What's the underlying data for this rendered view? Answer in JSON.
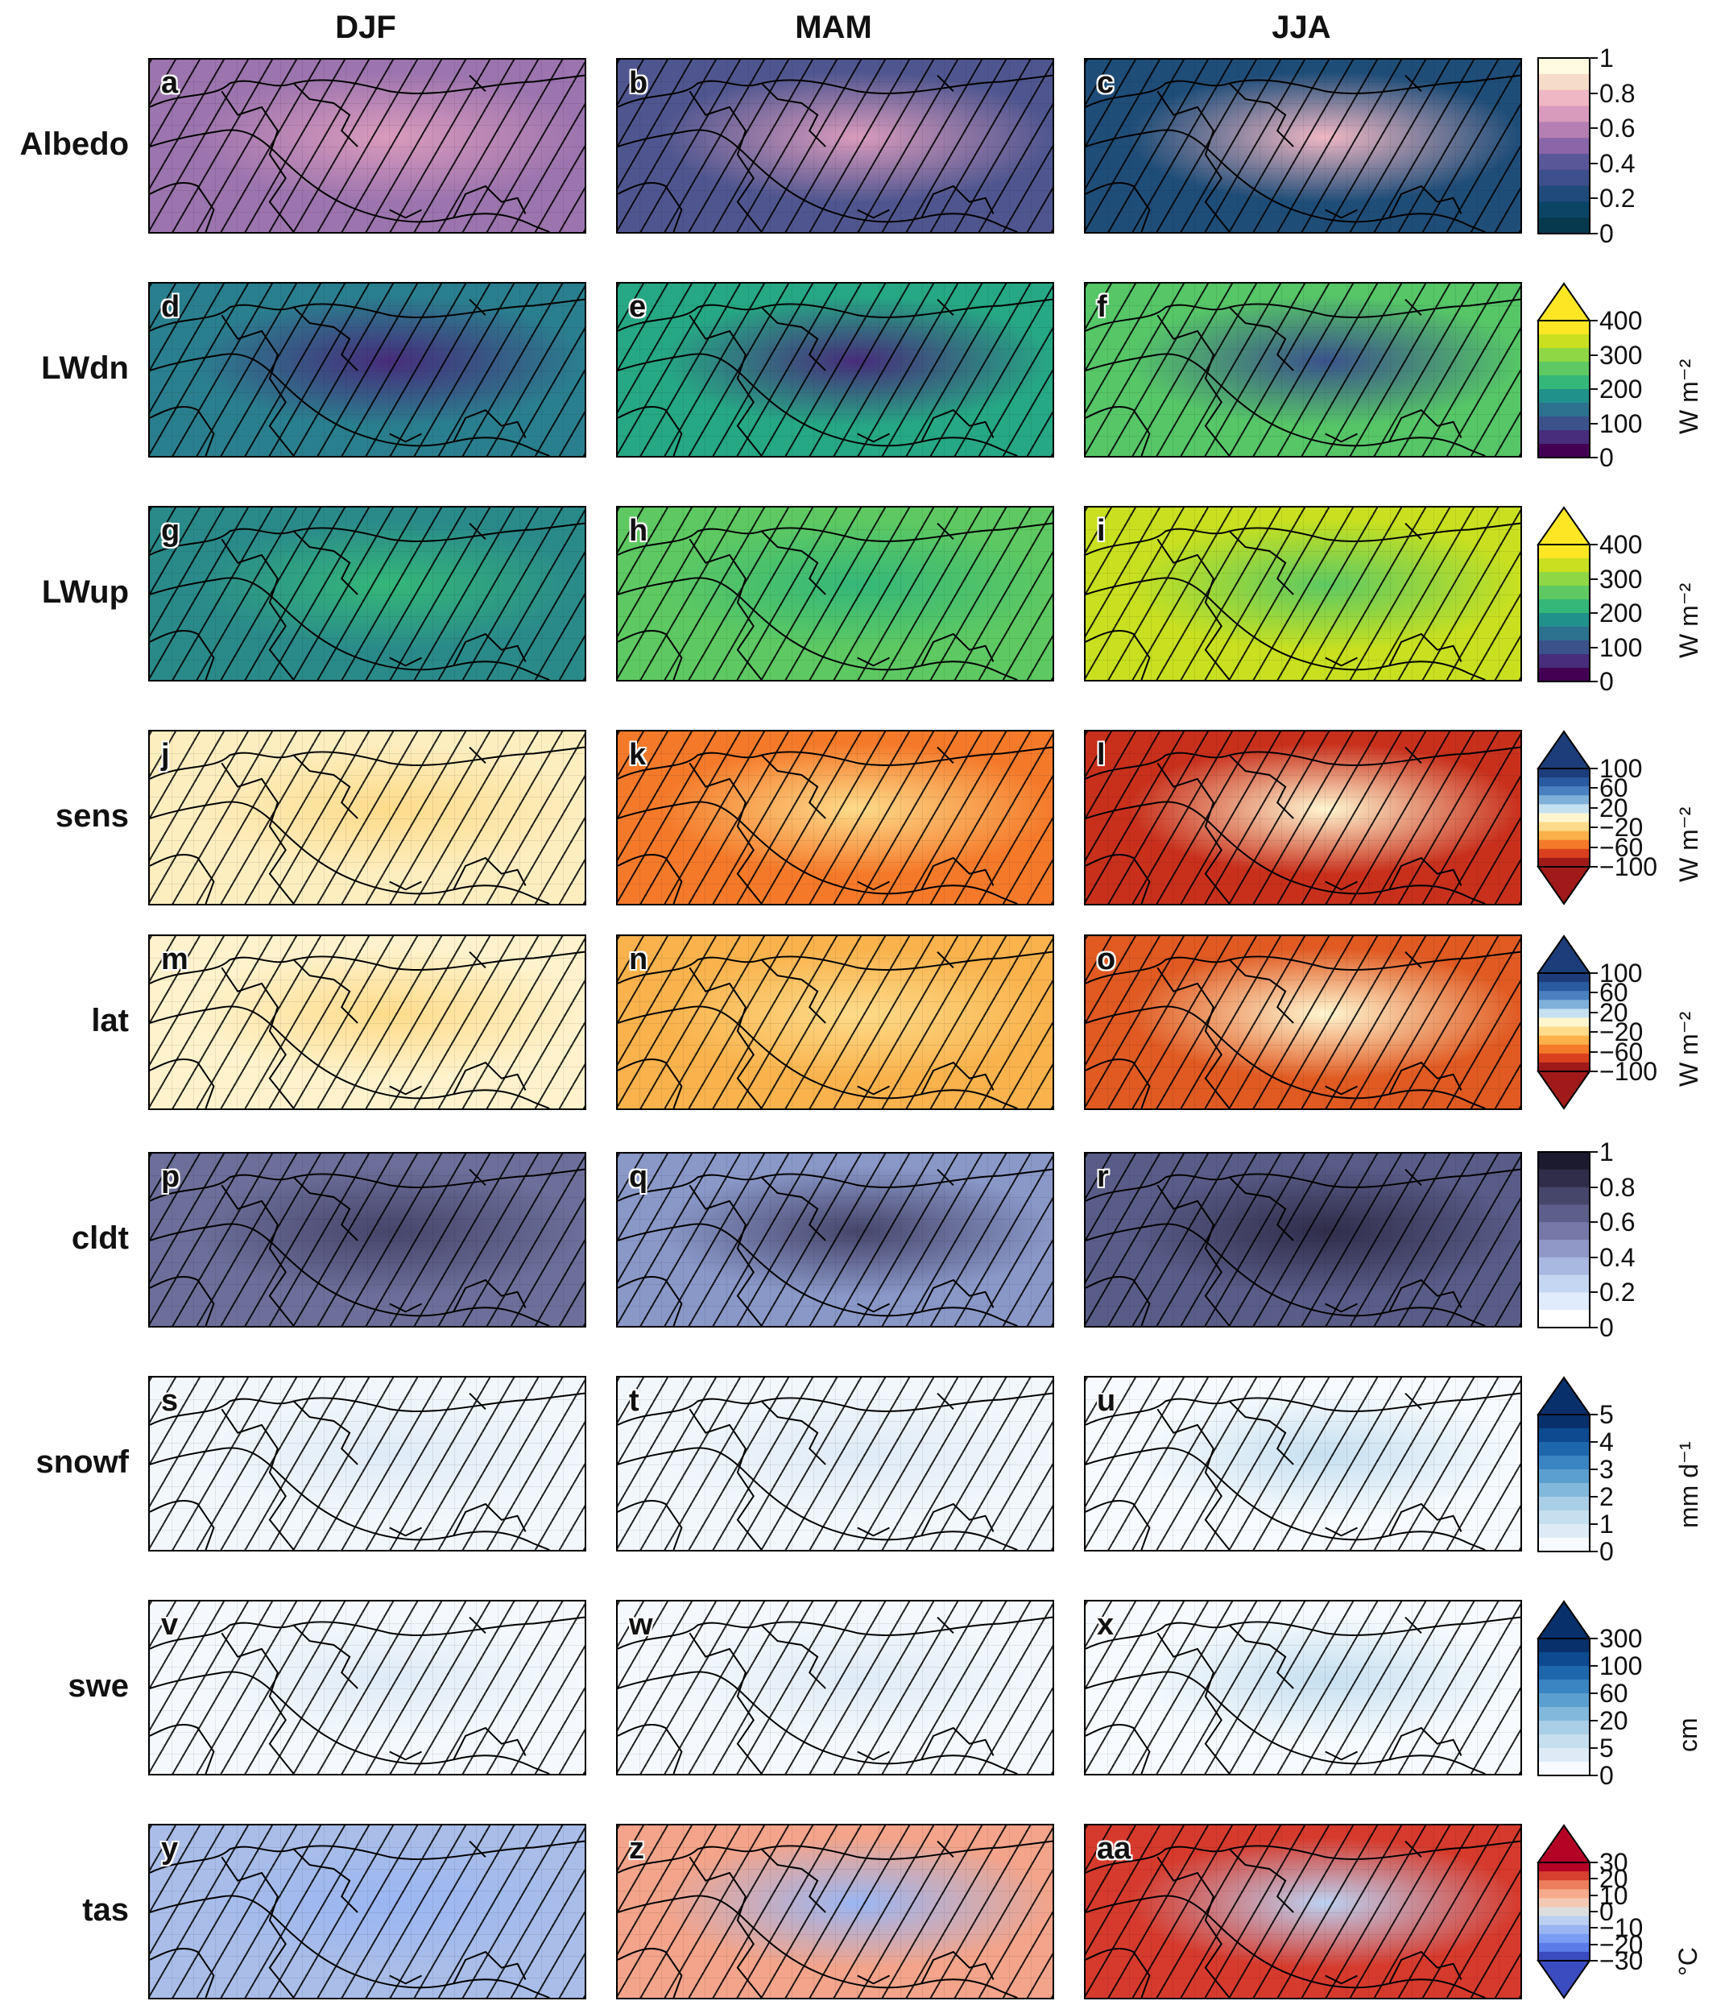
{
  "columns": [
    "DJF",
    "MAM",
    "JJA"
  ],
  "rows": [
    {
      "name": "Albedo",
      "panels": [
        "a",
        "b",
        "c"
      ],
      "colorbar": {
        "ticks": [
          "1",
          "0.8",
          "0.6",
          "0.4",
          "0.2",
          "0"
        ],
        "unit": "",
        "extend": "none",
        "colors": [
          "#fffbe0",
          "#f6dcc8",
          "#efb7c3",
          "#d99bbc",
          "#b57fb3",
          "#8a66a8",
          "#5a5799",
          "#3d4f8c",
          "#1f4a7a",
          "#0b4566",
          "#06384e"
        ]
      },
      "fills": [
        "#9c74ae",
        "#4f568f",
        "#1e4d78"
      ]
    },
    {
      "name": "LWdn",
      "panels": [
        "d",
        "e",
        "f"
      ],
      "colorbar": {
        "ticks": [
          "400",
          "300",
          "200",
          "100",
          "0"
        ],
        "unit": "W m⁻²",
        "extend": "max",
        "colors": [
          "#fde725",
          "#c8e020",
          "#8fd744",
          "#5ec962",
          "#35b779",
          "#21918c",
          "#2c728e",
          "#3b528b",
          "#472d7b",
          "#440154"
        ]
      },
      "fills": [
        "#2a7f8e",
        "#26a884",
        "#56c667"
      ]
    },
    {
      "name": "LWup",
      "panels": [
        "g",
        "h",
        "i"
      ],
      "colorbar": {
        "ticks": [
          "400",
          "300",
          "200",
          "100",
          "0"
        ],
        "unit": "W m⁻²",
        "extend": "max",
        "colors": [
          "#fde725",
          "#c8e020",
          "#8fd744",
          "#5ec962",
          "#35b779",
          "#21918c",
          "#2c728e",
          "#3b528b",
          "#472d7b",
          "#440154"
        ]
      },
      "fills": [
        "#2a8a8a",
        "#5ec962",
        "#c8e020"
      ]
    },
    {
      "name": "sens",
      "panels": [
        "j",
        "k",
        "l"
      ],
      "colorbar": {
        "ticks": [
          "100",
          "60",
          "20",
          "−20",
          "−60",
          "−100"
        ],
        "unit": "W m⁻²",
        "extend": "both",
        "colors": [
          "#1d3d7a",
          "#2a5aa0",
          "#4a80c0",
          "#7fb0da",
          "#c5e0f0",
          "#fff6d0",
          "#fddb8a",
          "#fbb04a",
          "#f47a2a",
          "#d9411e",
          "#a11a1a"
        ]
      },
      "fills": [
        "#fdeec0",
        "#f47a2a",
        "#c8301c"
      ]
    },
    {
      "name": "lat",
      "panels": [
        "m",
        "n",
        "o"
      ],
      "colorbar": {
        "ticks": [
          "100",
          "60",
          "20",
          "−20",
          "−60",
          "−100"
        ],
        "unit": "W m⁻²",
        "extend": "both",
        "colors": [
          "#1d3d7a",
          "#2a5aa0",
          "#4a80c0",
          "#7fb0da",
          "#c5e0f0",
          "#fff6d0",
          "#fddb8a",
          "#fbb04a",
          "#f47a2a",
          "#d9411e",
          "#a11a1a"
        ]
      },
      "fills": [
        "#fff2cc",
        "#f9b24c",
        "#e05a22"
      ]
    },
    {
      "name": "cldt",
      "panels": [
        "p",
        "q",
        "r"
      ],
      "colorbar": {
        "ticks": [
          "1",
          "0.8",
          "0.6",
          "0.4",
          "0.2",
          "0"
        ],
        "unit": "",
        "extend": "none",
        "colors": [
          "#1b1a2e",
          "#2f2d4a",
          "#46456a",
          "#5d5f8a",
          "#7679a8",
          "#8f98c6",
          "#a8b8e0",
          "#c5d6f2",
          "#e0ebfb",
          "#ffffff"
        ]
      },
      "fills": [
        "#6d6f9a",
        "#8a98c8",
        "#5a5c88"
      ]
    },
    {
      "name": "snowf",
      "panels": [
        "s",
        "t",
        "u"
      ],
      "colorbar": {
        "ticks": [
          "5",
          "4",
          "3",
          "2",
          "1",
          "0"
        ],
        "unit": "mm d⁻¹",
        "extend": "max",
        "colors": [
          "#08306b",
          "#0d4a8f",
          "#1f67ad",
          "#3b84c2",
          "#5b9fd0",
          "#82b8dc",
          "#a8cfe6",
          "#c6dfef",
          "#deebf7",
          "#f7fbff"
        ]
      },
      "fills": [
        "#f2f7fc",
        "#f2f7fc",
        "#f7fbff"
      ]
    },
    {
      "name": "swe",
      "panels": [
        "v",
        "w",
        "x"
      ],
      "colorbar": {
        "ticks": [
          "300",
          "100",
          "60",
          "20",
          "5",
          "0"
        ],
        "unit": "cm",
        "extend": "max",
        "colors": [
          "#08306b",
          "#0d4a8f",
          "#1f67ad",
          "#3b84c2",
          "#5b9fd0",
          "#82b8dc",
          "#a8cfe6",
          "#c6dfef",
          "#deebf7",
          "#f7fbff"
        ]
      },
      "fills": [
        "#f5f9fd",
        "#f5f9fd",
        "#f7fbff"
      ]
    },
    {
      "name": "tas",
      "panels": [
        "y",
        "z",
        "aa"
      ],
      "colorbar": {
        "ticks": [
          "30",
          "20",
          "10",
          "0",
          "−10",
          "−20",
          "−30"
        ],
        "unit": "°C",
        "extend": "both",
        "colors": [
          "#b40426",
          "#d6402e",
          "#ec7e5e",
          "#f5ab8c",
          "#f3c9b3",
          "#dddddd",
          "#bcd1f1",
          "#9ab6f2",
          "#7a9cf2",
          "#5b7ce8",
          "#3b4cc0"
        ]
      },
      "fills": [
        "#a9bde8",
        "#f3a48a",
        "#d63a2c"
      ]
    }
  ]
}
